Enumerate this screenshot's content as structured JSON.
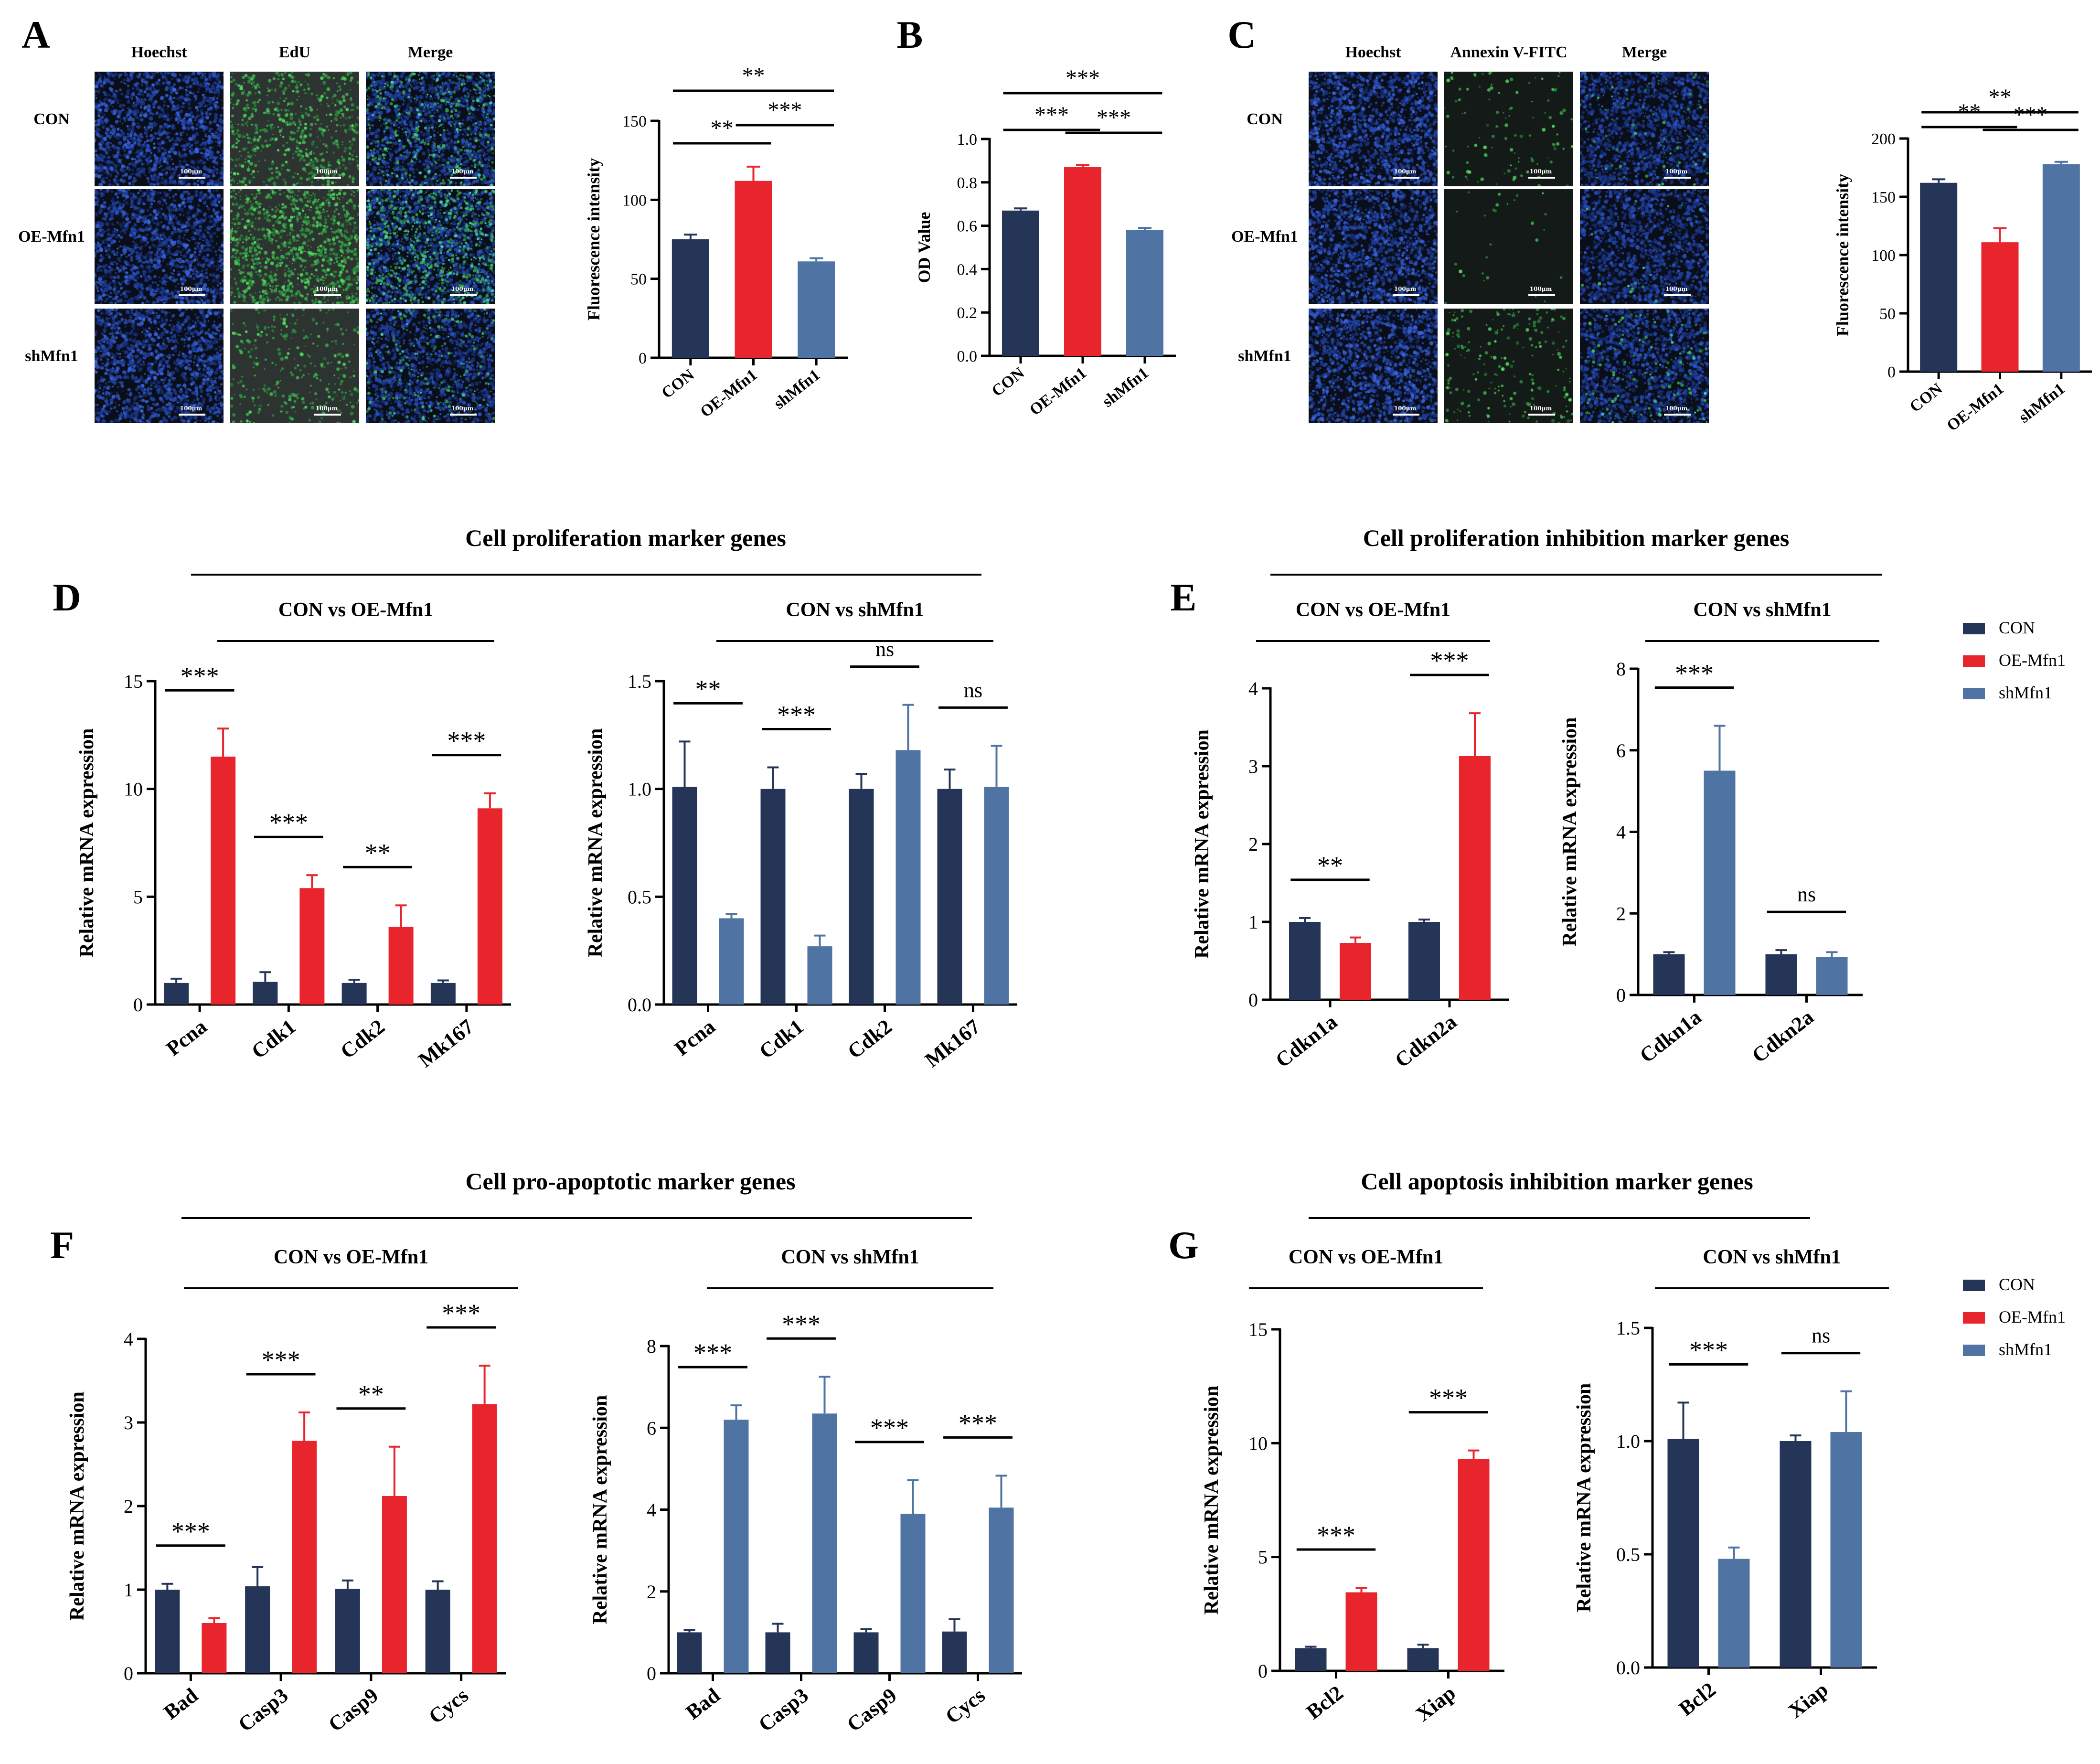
{
  "colors": {
    "con": "#253557",
    "oe": "#e8242d",
    "sh": "#4f73a3",
    "text": "#000000"
  },
  "scale_label": "100μm",
  "panel_a": {
    "letter": "A",
    "channels": [
      "Hoechst",
      "EdU",
      "Merge"
    ],
    "groups": [
      "CON",
      "OE-Mfn1",
      "shMfn1"
    ],
    "chart": {
      "type": "bar",
      "ylabel": "Fluorescence intensity",
      "categories": [
        "CON",
        "OE-Mfn1",
        "shMfn1"
      ],
      "values": [
        75,
        112,
        61
      ],
      "errors": [
        3,
        9,
        2
      ],
      "ylim": [
        0,
        150
      ],
      "yticks": [
        0,
        50,
        100,
        150
      ],
      "ytick_labels": [
        "0",
        "50",
        "100",
        "150"
      ],
      "sig": [
        {
          "a": 0,
          "b": 1,
          "text": "**"
        },
        {
          "a": 1,
          "b": 2,
          "text": "***"
        },
        {
          "a": 0,
          "b": 2,
          "text": "**"
        }
      ]
    }
  },
  "panel_b": {
    "letter": "B",
    "chart": {
      "type": "bar",
      "ylabel": "OD Value",
      "categories": [
        "CON",
        "OE-Mfn1",
        "shMfn1"
      ],
      "values": [
        0.67,
        0.87,
        0.58
      ],
      "errors": [
        0.01,
        0.01,
        0.01
      ],
      "ylim": [
        0,
        1.0
      ],
      "yticks": [
        0,
        0.2,
        0.4,
        0.6,
        0.8,
        1.0
      ],
      "ytick_labels": [
        "0.0",
        "0.2",
        "0.4",
        "0.6",
        "0.8",
        "1.0"
      ],
      "sig": [
        {
          "a": 0,
          "b": 1,
          "text": "***"
        },
        {
          "a": 1,
          "b": 2,
          "text": "***"
        },
        {
          "a": 0,
          "b": 2,
          "text": "***"
        }
      ]
    }
  },
  "panel_c": {
    "letter": "C",
    "channels": [
      "Hoechst",
      "Annexin V-FITC",
      "Merge"
    ],
    "groups": [
      "CON",
      "OE-Mfn1",
      "shMfn1"
    ],
    "chart": {
      "type": "bar",
      "ylabel": "Fluorescence intensity",
      "categories": [
        "CON",
        "OE-Mfn1",
        "shMfn1"
      ],
      "values": [
        162,
        111,
        178
      ],
      "errors": [
        3,
        12,
        2
      ],
      "ylim": [
        0,
        200
      ],
      "yticks": [
        0,
        50,
        100,
        150,
        200
      ],
      "ytick_labels": [
        "0",
        "50",
        "100",
        "150",
        "200"
      ],
      "sig": [
        {
          "a": 0,
          "b": 1,
          "text": "**"
        },
        {
          "a": 1,
          "b": 2,
          "text": "***"
        },
        {
          "a": 0,
          "b": 2,
          "text": "**"
        }
      ]
    }
  },
  "section_titles": {
    "proliferation": "Cell proliferation marker genes",
    "proliferation_inhibition": "Cell proliferation inhibition marker genes",
    "pro_apoptotic": "Cell pro-apoptotic marker genes",
    "apoptosis_inhibition": "Cell apoptosis inhibition marker genes"
  },
  "letters": {
    "d": "D",
    "e": "E",
    "f": "F",
    "g": "G"
  },
  "legend": [
    "CON",
    "OE-Mfn1",
    "shMfn1"
  ],
  "chart_data": [
    {
      "id": "D1",
      "type": "bar",
      "title": "CON vs OE-Mfn1",
      "ylabel": "Relative mRNA expression",
      "categories": [
        "Pcna",
        "Cdk1",
        "Cdk2",
        "Mk167"
      ],
      "series": [
        {
          "name": "CON",
          "values": [
            1.0,
            1.05,
            1.0,
            1.0
          ],
          "errors": [
            0.2,
            0.45,
            0.15,
            0.12
          ]
        },
        {
          "name": "OE-Mfn1",
          "values": [
            11.5,
            5.4,
            3.6,
            9.1
          ],
          "errors": [
            1.3,
            0.6,
            1.0,
            0.7
          ]
        }
      ],
      "ylim": [
        0,
        15
      ],
      "yticks": [
        0,
        5,
        10,
        15
      ],
      "ytick_labels": [
        "0",
        "5",
        "10",
        "15"
      ],
      "sig": [
        "***",
        "***",
        "**",
        "***"
      ]
    },
    {
      "id": "D2",
      "type": "bar",
      "title": "CON vs shMfn1",
      "ylabel": "Relative mRNA expression",
      "categories": [
        "Pcna",
        "Cdk1",
        "Cdk2",
        "Mk167"
      ],
      "series": [
        {
          "name": "CON",
          "values": [
            1.01,
            1.0,
            1.0,
            1.0
          ],
          "errors": [
            0.21,
            0.1,
            0.07,
            0.09
          ]
        },
        {
          "name": "shMfn1",
          "values": [
            0.4,
            0.27,
            1.18,
            1.01
          ],
          "errors": [
            0.02,
            0.05,
            0.21,
            0.19
          ]
        }
      ],
      "ylim": [
        0,
        1.5
      ],
      "yticks": [
        0,
        0.5,
        1.0,
        1.5
      ],
      "ytick_labels": [
        "0.0",
        "0.5",
        "1.0",
        "1.5"
      ],
      "sig": [
        "**",
        "***",
        "ns",
        "ns"
      ]
    },
    {
      "id": "E1",
      "type": "bar",
      "title": "CON vs OE-Mfn1",
      "ylabel": "Relative mRNA expression",
      "categories": [
        "Cdkn1a",
        "Cdkn2a"
      ],
      "series": [
        {
          "name": "CON",
          "values": [
            1.0,
            1.0
          ],
          "errors": [
            0.05,
            0.03
          ]
        },
        {
          "name": "OE-Mfn1",
          "values": [
            0.73,
            3.13
          ],
          "errors": [
            0.07,
            0.55
          ]
        }
      ],
      "ylim": [
        0,
        4
      ],
      "yticks": [
        0,
        1,
        2,
        3,
        4
      ],
      "ytick_labels": [
        "0",
        "1",
        "2",
        "3",
        "4"
      ],
      "sig": [
        "**",
        "***"
      ]
    },
    {
      "id": "E2",
      "type": "bar",
      "title": "CON vs shMfn1",
      "ylabel": "Relative mRNA expression",
      "categories": [
        "Cdkn1a",
        "Cdkn2a"
      ],
      "series": [
        {
          "name": "CON",
          "values": [
            1.0,
            1.0
          ],
          "errors": [
            0.05,
            0.1
          ]
        },
        {
          "name": "shMfn1",
          "values": [
            5.5,
            0.93
          ],
          "errors": [
            1.1,
            0.12
          ]
        }
      ],
      "ylim": [
        0,
        8
      ],
      "yticks": [
        0,
        2,
        4,
        6,
        8
      ],
      "ytick_labels": [
        "0",
        "2",
        "4",
        "6",
        "8"
      ],
      "sig": [
        "***",
        "ns"
      ]
    },
    {
      "id": "F1",
      "type": "bar",
      "title": "CON vs OE-Mfn1",
      "ylabel": "Relative mRNA expression",
      "categories": [
        "Bad",
        "Casp3",
        "Casp9",
        "Cycs"
      ],
      "series": [
        {
          "name": "CON",
          "values": [
            1.0,
            1.04,
            1.01,
            1.0
          ],
          "errors": [
            0.07,
            0.23,
            0.1,
            0.1
          ]
        },
        {
          "name": "OE-Mfn1",
          "values": [
            0.6,
            2.78,
            2.12,
            3.22
          ],
          "errors": [
            0.06,
            0.34,
            0.59,
            0.46
          ]
        }
      ],
      "ylim": [
        0,
        4
      ],
      "yticks": [
        0,
        1,
        2,
        3,
        4
      ],
      "ytick_labels": [
        "0",
        "1",
        "2",
        "3",
        "4"
      ],
      "sig": [
        "***",
        "***",
        "**",
        "***"
      ]
    },
    {
      "id": "F2",
      "type": "bar",
      "title": "CON vs shMfn1",
      "ylabel": "Relative mRNA expression",
      "categories": [
        "Bad",
        "Casp3",
        "Casp9",
        "Cycs"
      ],
      "series": [
        {
          "name": "CON",
          "values": [
            1.0,
            1.0,
            1.0,
            1.02
          ],
          "errors": [
            0.06,
            0.21,
            0.08,
            0.3
          ]
        },
        {
          "name": "shMfn1",
          "values": [
            6.2,
            6.35,
            3.9,
            4.05
          ],
          "errors": [
            0.35,
            0.9,
            0.82,
            0.78
          ]
        }
      ],
      "ylim": [
        0,
        8
      ],
      "yticks": [
        0,
        2,
        4,
        6,
        8
      ],
      "ytick_labels": [
        "0",
        "2",
        "4",
        "6",
        "8"
      ],
      "sig": [
        "***",
        "***",
        "***",
        "***"
      ]
    },
    {
      "id": "G1",
      "type": "bar",
      "title": "CON vs OE-Mfn1",
      "ylabel": "Relative mRNA expression",
      "categories": [
        "Bcl2",
        "Xiap"
      ],
      "series": [
        {
          "name": "CON",
          "values": [
            1.0,
            1.0
          ],
          "errors": [
            0.06,
            0.15
          ]
        },
        {
          "name": "OE-Mfn1",
          "values": [
            3.45,
            9.3
          ],
          "errors": [
            0.2,
            0.38
          ]
        }
      ],
      "ylim": [
        0,
        15
      ],
      "yticks": [
        0,
        5,
        10,
        15
      ],
      "ytick_labels": [
        "0",
        "5",
        "10",
        "15"
      ],
      "sig": [
        "***",
        "***"
      ]
    },
    {
      "id": "G2",
      "type": "bar",
      "title": "CON vs shMfn1",
      "ylabel": "Relative mRNA expression",
      "categories": [
        "Bcl2",
        "Xiap"
      ],
      "series": [
        {
          "name": "CON",
          "values": [
            1.01,
            1.0
          ],
          "errors": [
            0.16,
            0.025
          ]
        },
        {
          "name": "shMfn1",
          "values": [
            0.48,
            1.04
          ],
          "errors": [
            0.05,
            0.18
          ]
        }
      ],
      "ylim": [
        0,
        1.5
      ],
      "yticks": [
        0,
        0.5,
        1.0,
        1.5
      ],
      "ytick_labels": [
        "0.0",
        "0.5",
        "1.0",
        "1.5"
      ],
      "sig": [
        "***",
        "ns"
      ]
    }
  ]
}
